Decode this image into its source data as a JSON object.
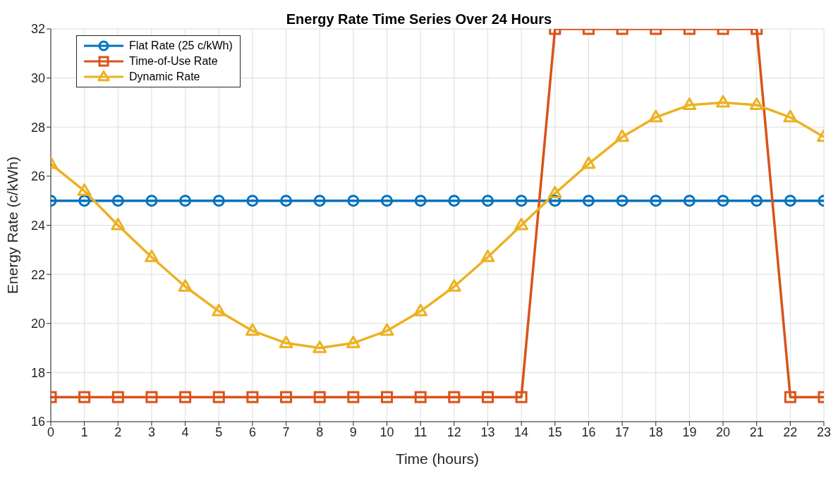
{
  "chart_data": {
    "type": "line",
    "title": "Energy Rate Time Series Over 24 Hours",
    "xlabel": "Time (hours)",
    "ylabel": "Energy Rate (c/kWh)",
    "x": [
      0,
      1,
      2,
      3,
      4,
      5,
      6,
      7,
      8,
      9,
      10,
      11,
      12,
      13,
      14,
      15,
      16,
      17,
      18,
      19,
      20,
      21,
      22,
      23
    ],
    "series": [
      {
        "name": "Flat Rate (25 c/kWh)",
        "color": "#0072bd",
        "marker": "circle",
        "values": [
          25,
          25,
          25,
          25,
          25,
          25,
          25,
          25,
          25,
          25,
          25,
          25,
          25,
          25,
          25,
          25,
          25,
          25,
          25,
          25,
          25,
          25,
          25,
          25
        ]
      },
      {
        "name": "Time-of-Use Rate",
        "color": "#d95319",
        "marker": "square",
        "values": [
          17,
          17,
          17,
          17,
          17,
          17,
          17,
          17,
          17,
          17,
          17,
          17,
          17,
          17,
          17,
          32,
          32,
          32,
          32,
          32,
          32,
          32,
          17,
          17
        ]
      },
      {
        "name": "Dynamic Rate",
        "color": "#edb120",
        "marker": "triangle",
        "values": [
          26.5,
          25.4,
          24.0,
          22.7,
          21.5,
          20.5,
          19.7,
          19.2,
          19.0,
          19.2,
          19.7,
          20.5,
          21.5,
          22.7,
          24.0,
          25.3,
          26.5,
          27.6,
          28.4,
          28.9,
          29.0,
          28.9,
          28.4,
          27.6
        ]
      }
    ],
    "xlim": [
      0,
      23
    ],
    "xticks": [
      0,
      1,
      2,
      3,
      4,
      5,
      6,
      7,
      8,
      9,
      10,
      11,
      12,
      13,
      14,
      15,
      16,
      17,
      18,
      19,
      20,
      21,
      22,
      23
    ],
    "ylim": [
      16,
      32
    ],
    "yticks": [
      16,
      18,
      20,
      22,
      24,
      26,
      28,
      30,
      32
    ],
    "grid": true,
    "legend": "top left",
    "line_style": "solid"
  }
}
